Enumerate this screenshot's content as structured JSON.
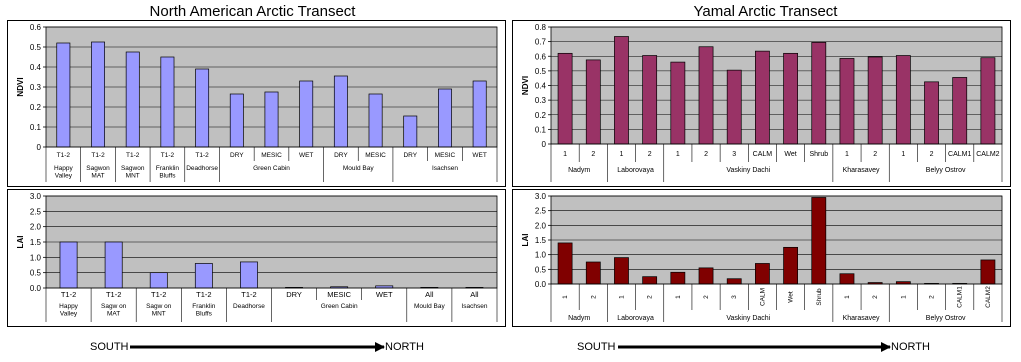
{
  "titles": {
    "left": "North American Arctic Transect",
    "right": "Yamal Arctic Transect"
  },
  "arrow": {
    "start_label": "SOUTH",
    "end_label": "NORTH"
  },
  "colors": {
    "na_bar": "#9999ff",
    "yamal_ndvi_bar": "#993366",
    "yamal_lai_bar": "#800000",
    "plot_bg": "#c0c0c0",
    "page_bg": "#ffffff"
  },
  "chart_data": [
    {
      "type": "bar",
      "id": "na_ndvi",
      "ylabel": "NDVI",
      "ylim": [
        0,
        0.6
      ],
      "yticks": [
        "0",
        "0.1",
        "0.2",
        "0.3",
        "0.4",
        "0.5",
        "0.6"
      ],
      "categories": [
        "T1-2",
        "T1-2",
        "T1-2",
        "T1-2",
        "T1-2",
        "DRY",
        "MESIC",
        "WET",
        "DRY",
        "MESIC",
        "DRY",
        "MESIC",
        "WET"
      ],
      "values": [
        0.52,
        0.525,
        0.475,
        0.45,
        0.39,
        0.265,
        0.275,
        0.33,
        0.355,
        0.265,
        0.155,
        0.29,
        0.33
      ],
      "groups": [
        {
          "label": "Happy\nValley",
          "count": 1
        },
        {
          "label": "Sagwon\nMAT",
          "count": 1
        },
        {
          "label": "Sagwon\nMNT",
          "count": 1
        },
        {
          "label": "Franklin\nBluffs",
          "count": 1
        },
        {
          "label": "Deadhorse",
          "count": 1
        },
        {
          "label": "Green Cabin",
          "count": 3
        },
        {
          "label": "Mould Bay",
          "count": 2
        },
        {
          "label": "Isachsen",
          "count": 3
        }
      ]
    },
    {
      "type": "bar",
      "id": "yamal_ndvi",
      "ylabel": "NDVI",
      "ylim": [
        0,
        0.8
      ],
      "yticks": [
        "0",
        "0.1",
        "0.2",
        "0.3",
        "0.4",
        "0.5",
        "0.6",
        "0.7",
        "0.8"
      ],
      "categories": [
        "1",
        "2",
        "1",
        "2",
        "1",
        "2",
        "3",
        "CALM",
        "Wet",
        "Shrub",
        "1",
        "2",
        "1",
        "2",
        "CALM1",
        "CALM2"
      ],
      "values": [
        0.62,
        0.575,
        0.735,
        0.605,
        0.56,
        0.665,
        0.505,
        0.635,
        0.62,
        0.695,
        0.585,
        0.595,
        0.605,
        0.425,
        0.455,
        0.59
      ],
      "groups": [
        {
          "label": "Nadym",
          "count": 2
        },
        {
          "label": "Laborovaya",
          "count": 2
        },
        {
          "label": "Vaskiny Dachi",
          "count": 6
        },
        {
          "label": "Kharasavey",
          "count": 2
        },
        {
          "label": "Belyy Ostrov",
          "count": 4
        }
      ]
    },
    {
      "type": "bar",
      "id": "na_lai",
      "ylabel": "LAI",
      "ylim": [
        0,
        3.0
      ],
      "yticks": [
        "0.0",
        "0.5",
        "1.0",
        "1.5",
        "2.0",
        "2.5",
        "3.0"
      ],
      "categories": [
        "T1-2",
        "T1-2",
        "T1-2",
        "T1-2",
        "T1-2",
        "DRY",
        "MESIC",
        "WET",
        "All",
        "All"
      ],
      "values": [
        1.5,
        1.5,
        0.5,
        0.8,
        0.85,
        0.01,
        0.04,
        0.07,
        0.01,
        0.01
      ],
      "groups": [
        {
          "label": "Happy\nValley",
          "count": 1
        },
        {
          "label": "Sagw on\nMAT",
          "count": 1
        },
        {
          "label": "Sagw on\nMNT",
          "count": 1
        },
        {
          "label": "Franklin\nBluffs",
          "count": 1
        },
        {
          "label": "Deadhorse",
          "count": 1
        },
        {
          "label": "Green Cabin",
          "count": 3
        },
        {
          "label": "Mould Bay",
          "count": 1
        },
        {
          "label": "Isachsen",
          "count": 1
        }
      ]
    },
    {
      "type": "bar",
      "id": "yamal_lai",
      "ylabel": "LAI",
      "ylim": [
        0,
        3.0
      ],
      "yticks": [
        "0.0",
        "0.5",
        "1.0",
        "1.5",
        "2.0",
        "2.5",
        "3.0"
      ],
      "categories": [
        "1",
        "2",
        "1",
        "2",
        "1",
        "2",
        "3",
        "CALM",
        "Wet",
        "Shrub",
        "1",
        "2",
        "1",
        "2",
        "CALM1",
        "CALM2"
      ],
      "values": [
        1.4,
        0.75,
        0.9,
        0.25,
        0.4,
        0.55,
        0.18,
        0.7,
        1.25,
        2.95,
        0.35,
        0.05,
        0.08,
        0.01,
        0.01,
        0.82
      ],
      "groups": [
        {
          "label": "Nadym",
          "count": 2
        },
        {
          "label": "Laborovaya",
          "count": 2
        },
        {
          "label": "Vaskiny Dachi",
          "count": 6
        },
        {
          "label": "Kharasavey",
          "count": 2
        },
        {
          "label": "Belyy Ostrov",
          "count": 4
        }
      ]
    }
  ]
}
